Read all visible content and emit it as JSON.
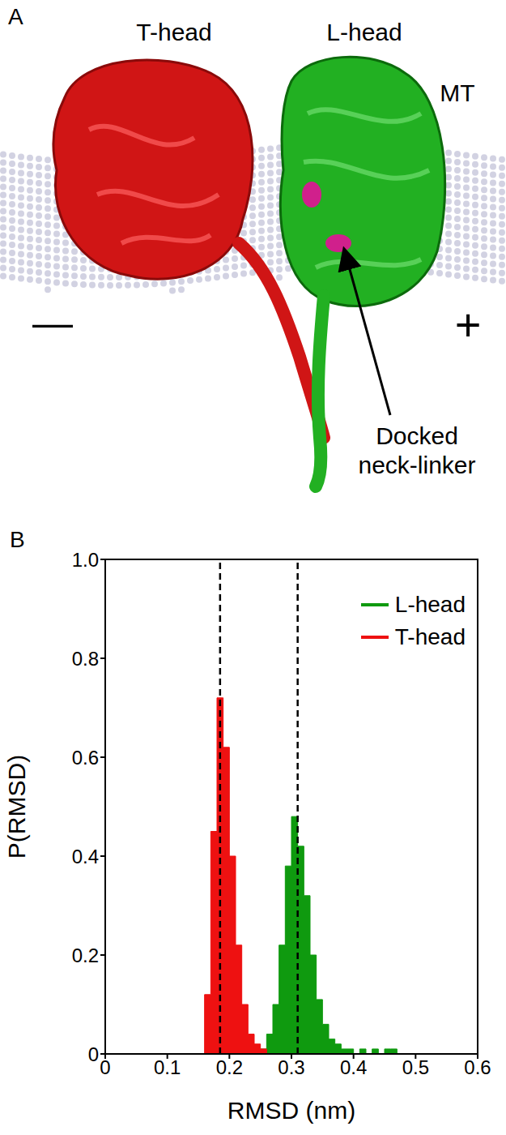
{
  "diagram": {
    "letter": "A",
    "t_head": "T-head",
    "l_head": "L-head",
    "mt": "MT",
    "minus_end": "—",
    "plus_end": "+",
    "arrow_label": "Docked neck-linker"
  },
  "chart_letter": "B",
  "chart_data": {
    "type": "histogram",
    "x_label": "RMSD (nm)",
    "y_label": "P(RMSD)",
    "bins": [
      0.15,
      0.16,
      0.17,
      0.18,
      0.19,
      0.2,
      0.21,
      0.22,
      0.23,
      0.24,
      0.25,
      0.26,
      0.27,
      0.28,
      0.29,
      0.3,
      0.31,
      0.32,
      0.33,
      0.34,
      0.35,
      0.36,
      0.37,
      0.38,
      0.39,
      0.4,
      0.41,
      0.42,
      0.43,
      0.44,
      0.45,
      0.46,
      0.47,
      0.48
    ],
    "series": [
      {
        "name": "L-head",
        "color": "#0f9a0f",
        "values": [
          0,
          0,
          0,
          0,
          0,
          0,
          0,
          0,
          0,
          0,
          0.01,
          0.04,
          0.1,
          0.22,
          0.38,
          0.48,
          0.42,
          0.32,
          0.2,
          0.11,
          0.06,
          0.03,
          0.02,
          0.01,
          0.01,
          0,
          0.01,
          0,
          0.01,
          0,
          0.01,
          0.01,
          0
        ]
      },
      {
        "name": "T-head",
        "color": "#ee1111",
        "values": [
          0,
          0.12,
          0.45,
          0.72,
          0.62,
          0.4,
          0.22,
          0.1,
          0.04,
          0.02,
          0.01,
          0,
          0,
          0,
          0,
          0,
          0,
          0,
          0,
          0,
          0,
          0,
          0,
          0,
          0,
          0,
          0,
          0,
          0,
          0,
          0,
          0,
          0
        ]
      }
    ],
    "xlim": [
      0,
      0.6
    ],
    "xticks": [
      0,
      0.1,
      0.2,
      0.3,
      0.4,
      0.5,
      0.6
    ],
    "ylim": [
      0,
      1
    ],
    "yticks": [
      0,
      0.2,
      0.4,
      0.6,
      0.8,
      {
        "value": 1,
        "label": "1.0"
      }
    ],
    "vlines": [
      0.185,
      0.31
    ],
    "legend": "upper right"
  }
}
